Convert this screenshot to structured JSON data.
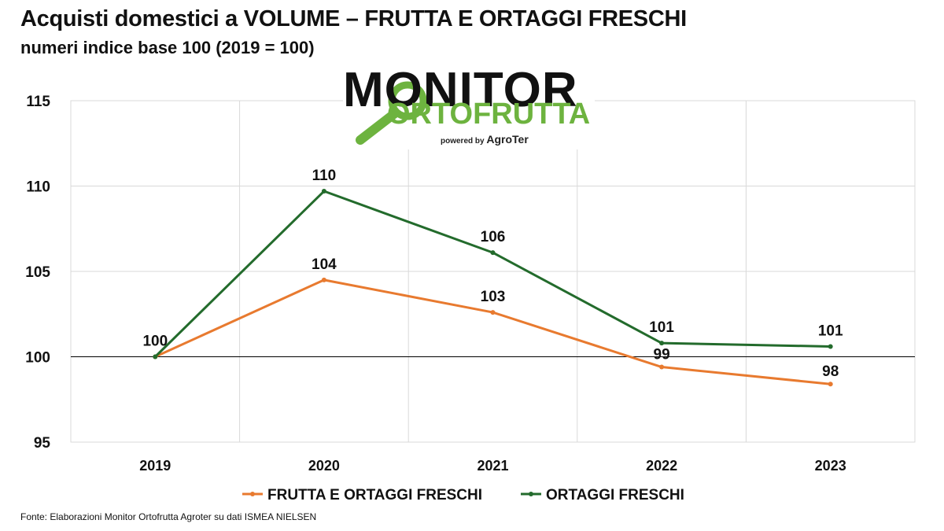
{
  "header": {
    "title": "Acquisti domestici a VOLUME – FRUTTA E ORTAGGI FRESCHI",
    "subtitle": "numeri indice base 100 (2019 = 100)"
  },
  "logo": {
    "top_text": "MONITOR",
    "bottom_text": "ORTOFRUTTA",
    "powered_label": "powered by",
    "powered_brand": "AgroTer",
    "colors": {
      "dark": "#111111",
      "green": "#6db33f"
    }
  },
  "footer": {
    "source": "Fonte: Elaborazioni Monitor Ortofrutta Agroter su dati ISMEA NIELSEN"
  },
  "chart_data": {
    "type": "line",
    "x": [
      "2019",
      "2020",
      "2021",
      "2022",
      "2023"
    ],
    "ylim": [
      95,
      115
    ],
    "yticks": [
      95,
      100,
      105,
      110,
      115
    ],
    "grid": true,
    "legend_position": "bottom",
    "series": [
      {
        "name": "FRUTTA E ORTAGGI FRESCHI",
        "color": "#e87a2f",
        "values": [
          100,
          104.5,
          102.6,
          99.4,
          98.4
        ],
        "labels": [
          "",
          "104",
          "103",
          "99",
          "98"
        ]
      },
      {
        "name": "ORTAGGI FRESCHI",
        "color": "#236b2c",
        "values": [
          100,
          109.7,
          106.1,
          100.8,
          100.6
        ],
        "labels": [
          "100",
          "110",
          "106",
          "101",
          "101"
        ]
      }
    ]
  }
}
